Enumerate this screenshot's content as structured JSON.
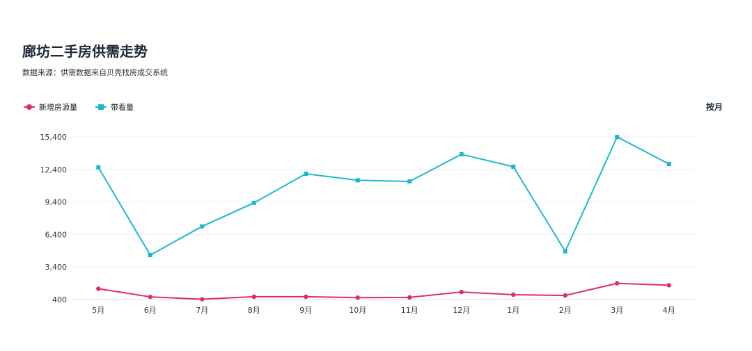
{
  "header": {
    "title": "廊坊二手房供需走势",
    "source": "数据来源：供需数据来自贝壳找房成交系统",
    "period_toggle": "按月"
  },
  "colors": {
    "new_listings": "#e02d61",
    "viewings": "#1ab8cf",
    "grid": "#eeeeee"
  },
  "chart_data": {
    "type": "line",
    "categories": [
      "5月",
      "6月",
      "7月",
      "8月",
      "9月",
      "10月",
      "11月",
      "12月",
      "1月",
      "2月",
      "3月",
      "4月"
    ],
    "series": [
      {
        "name": "新增房源量",
        "marker": "circle",
        "values": [
          1400,
          650,
          430,
          660,
          660,
          580,
          600,
          1100,
          850,
          780,
          1900,
          1720
        ]
      },
      {
        "name": "带看量",
        "marker": "square",
        "values": [
          12600,
          4500,
          7150,
          9320,
          12000,
          11400,
          11300,
          13800,
          12650,
          4850,
          15400,
          12900
        ]
      }
    ],
    "ylim": [
      400,
      15400
    ],
    "yticks": [
      400,
      3400,
      6400,
      9400,
      12400,
      15400
    ],
    "ytick_labels": [
      "400",
      "3,400",
      "6,400",
      "9,400",
      "12,400",
      "15,400"
    ],
    "grid": true,
    "legend_position": "top-left",
    "title": "",
    "xlabel": "",
    "ylabel": ""
  }
}
